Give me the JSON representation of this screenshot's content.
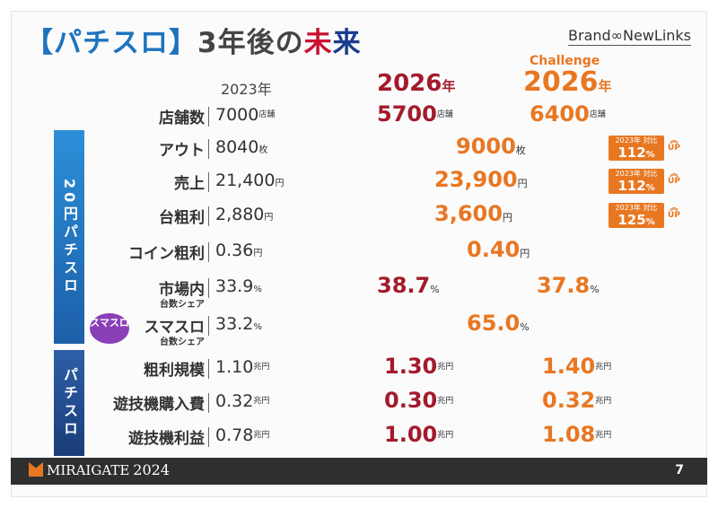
{
  "header": {
    "title_bracket_open": "【",
    "title_main": "パチスロ",
    "title_bracket_close": "】",
    "title_rest1": "3年後の",
    "title_rest2": "未",
    "title_rest3": "来",
    "brand": "Brand∞NewLinks"
  },
  "columns": {
    "y2023": "2023年",
    "y2026": "2026",
    "y2026_unit": "年",
    "challenge_label": "Challenge",
    "challenge_year": "2026",
    "challenge_unit": "年"
  },
  "bands": {
    "band1": "20円パチスロ",
    "band2": "パチスロ"
  },
  "smaslo_logo": "スマスロ",
  "rows": {
    "stores": {
      "label": "店舗数",
      "v2023": "7000",
      "u2023": "店舗",
      "v2026": "5700",
      "u2026": "店舗",
      "vch": "6400",
      "uch": "店舗"
    },
    "out": {
      "label": "アウト",
      "v2023": "8040",
      "u2023": "枚",
      "vmid": "9000",
      "umid": "枚",
      "badge_text": "2023年 対比",
      "badge_value": "112",
      "badge_unit": "%",
      "up": "UP"
    },
    "sales": {
      "label": "売上",
      "v2023": "21,400",
      "u2023": "円",
      "vmid": "23,900",
      "umid": "円",
      "badge_text": "2023年 対比",
      "badge_value": "112",
      "badge_unit": "%",
      "up": "UP"
    },
    "profit": {
      "label": "台粗利",
      "v2023": "2,880",
      "u2023": "円",
      "vmid": "3,600",
      "umid": "円",
      "badge_text": "2023年 対比",
      "badge_value": "125",
      "badge_unit": "%",
      "up": "UP"
    },
    "coin": {
      "label": "コイン粗利",
      "v2023": "0.36",
      "u2023": "円",
      "vmid": "0.40",
      "umid": "円"
    },
    "share": {
      "label": "市場内",
      "sub": "台数シェア",
      "v2023": "33.9",
      "u2023": "%",
      "v2026": "38.7",
      "u2026": "%",
      "vch": "37.8",
      "uch": "%"
    },
    "smaslo": {
      "label": "スマスロ",
      "sub": "台数シェア",
      "v2023": "33.2",
      "u2023": "%",
      "vmid": "65.0",
      "umid": "%"
    },
    "scale": {
      "label": "粗利規模",
      "v2023": "1.10",
      "u2023": "兆円",
      "v2026": "1.30",
      "u2026": "兆円",
      "vch": "1.40",
      "uch": "兆円"
    },
    "purchase": {
      "label": "遊技機購入費",
      "v2023": "0.32",
      "u2023": "兆円",
      "v2026": "0.30",
      "u2026": "兆円",
      "vch": "0.32",
      "uch": "兆円"
    },
    "net": {
      "label": "遊技機利益",
      "v2023": "0.78",
      "u2023": "兆円",
      "v2026": "1.00",
      "u2026": "兆円",
      "vch": "1.08",
      "uch": "兆円"
    }
  },
  "footer": {
    "logo": "MIRAIGATE",
    "year": "2024",
    "page": "7"
  },
  "colors": {
    "accent_orange": "#e87722",
    "accent_red": "#a31a2c",
    "band_blue": "#1c5fa8",
    "footer_bg": "#2f2f2f"
  }
}
